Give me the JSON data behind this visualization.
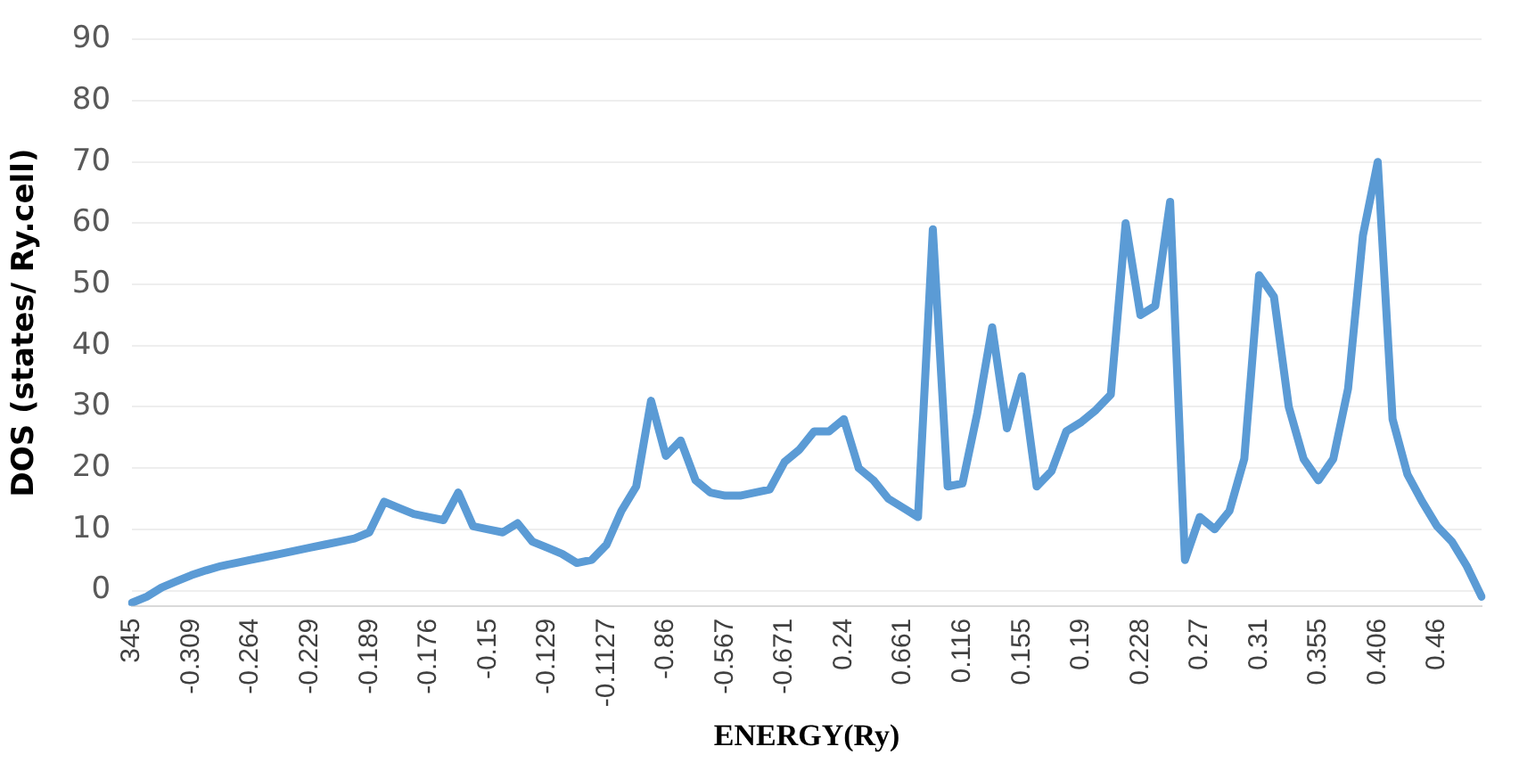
{
  "chart_data": {
    "type": "line",
    "xlabel": "ENERGY(Ry)",
    "ylabel": "DOS (states/ Ry.cell)",
    "categories": [
      "345",
      null,
      null,
      null,
      "-0.309",
      null,
      null,
      null,
      "-0.264",
      null,
      null,
      null,
      "-0.229",
      null,
      null,
      null,
      "-0.189",
      null,
      null,
      null,
      "-0.176",
      null,
      null,
      null,
      "-0.15",
      null,
      null,
      null,
      "-0.129",
      null,
      null,
      null,
      "-0.1127",
      null,
      null,
      null,
      "-0.86",
      null,
      null,
      null,
      "-0.567",
      null,
      null,
      null,
      "-0.671",
      null,
      null,
      null,
      "0.24",
      null,
      null,
      null,
      "0.661",
      null,
      null,
      null,
      "0.116",
      null,
      null,
      null,
      "0.155",
      null,
      null,
      null,
      "0.19",
      null,
      null,
      null,
      "0.228",
      null,
      null,
      null,
      "0.27",
      null,
      null,
      null,
      "0.31",
      null,
      null,
      null,
      "0.355",
      null,
      null,
      null,
      "0.406",
      null,
      null,
      null,
      "0.46",
      null,
      null,
      null
    ],
    "series": [
      {
        "color": "#5b9bd5",
        "values": [
          -2,
          -1,
          0.5,
          1.5,
          2.5,
          3.3,
          4,
          4.5,
          5,
          5.5,
          6,
          6.5,
          7,
          7.5,
          8,
          8.5,
          9.5,
          14.5,
          13.5,
          12.5,
          12,
          11.5,
          16,
          10.5,
          10,
          9.5,
          11,
          8,
          7,
          6,
          4.5,
          5,
          7.5,
          13,
          17,
          31,
          22,
          24.5,
          18,
          16,
          15.5,
          15.5,
          16,
          16.5,
          21,
          23,
          26,
          26,
          28,
          20,
          18,
          15,
          13.5,
          12,
          59,
          17,
          17.5,
          29,
          43,
          26.5,
          35,
          17,
          19.5,
          26,
          27.5,
          29.5,
          32,
          60,
          45,
          46.5,
          63.5,
          5,
          12,
          10,
          13,
          21.5,
          51.5,
          48,
          30,
          21.5,
          18,
          21.5,
          33,
          58,
          70,
          28,
          19,
          14.5,
          10.5,
          8,
          4,
          -1
        ]
      }
    ],
    "ylim": [
      -2.5,
      90
    ],
    "yticks": [
      0,
      10,
      20,
      30,
      40,
      50,
      60,
      70,
      80,
      90
    ],
    "grid": "y",
    "legend": false,
    "marker": "none",
    "line_style": "solid"
  }
}
